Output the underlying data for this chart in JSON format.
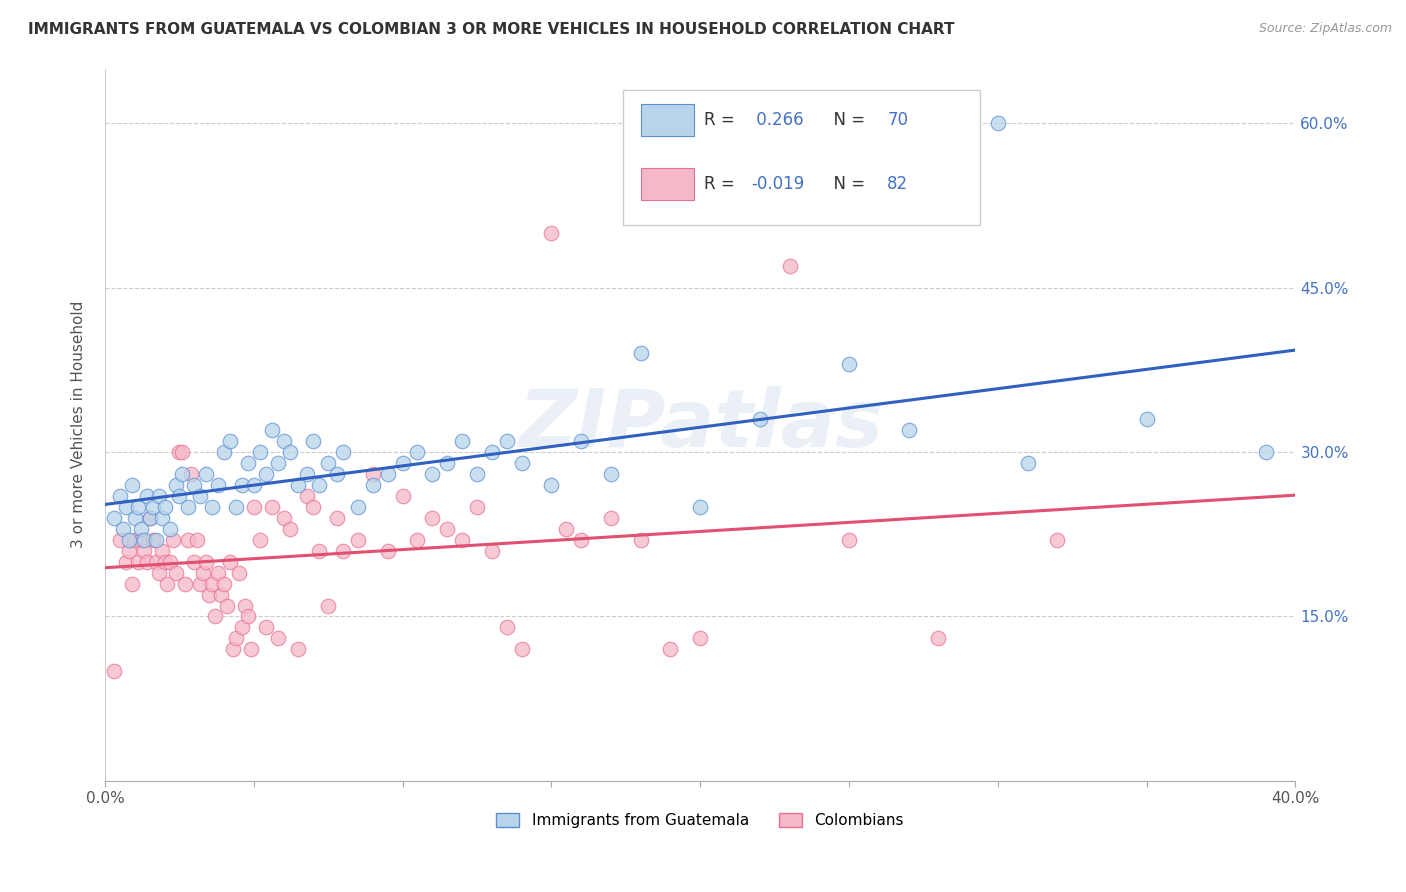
{
  "title": "IMMIGRANTS FROM GUATEMALA VS COLOMBIAN 3 OR MORE VEHICLES IN HOUSEHOLD CORRELATION CHART",
  "source": "Source: ZipAtlas.com",
  "ylabel": "3 or more Vehicles in Household",
  "xmin": 0.0,
  "xmax": 0.4,
  "ymin": 0.0,
  "ymax": 0.65,
  "xticks": [
    0.0,
    0.05,
    0.1,
    0.15,
    0.2,
    0.25,
    0.3,
    0.35,
    0.4
  ],
  "xtick_labels": [
    "0.0%",
    "",
    "",
    "",
    "",
    "",
    "",
    "",
    "40.0%"
  ],
  "ytick_labels": [
    "15.0%",
    "30.0%",
    "45.0%",
    "60.0%"
  ],
  "yticks": [
    0.15,
    0.3,
    0.45,
    0.6
  ],
  "R_blue": 0.266,
  "N_blue": 70,
  "R_pink": -0.019,
  "N_pink": 82,
  "blue_fill": "#b8d4ea",
  "pink_fill": "#f5b8c8",
  "blue_edge": "#5b8fd4",
  "pink_edge": "#e87090",
  "blue_line": "#3060c0",
  "pink_line": "#e05070",
  "legend_label_blue": "Immigrants from Guatemala",
  "legend_label_pink": "Colombians",
  "watermark": "ZIPatlas",
  "blue_scatter": [
    [
      0.003,
      0.24
    ],
    [
      0.005,
      0.26
    ],
    [
      0.006,
      0.23
    ],
    [
      0.007,
      0.25
    ],
    [
      0.008,
      0.22
    ],
    [
      0.009,
      0.27
    ],
    [
      0.01,
      0.24
    ],
    [
      0.011,
      0.25
    ],
    [
      0.012,
      0.23
    ],
    [
      0.013,
      0.22
    ],
    [
      0.014,
      0.26
    ],
    [
      0.015,
      0.24
    ],
    [
      0.016,
      0.25
    ],
    [
      0.017,
      0.22
    ],
    [
      0.018,
      0.26
    ],
    [
      0.019,
      0.24
    ],
    [
      0.02,
      0.25
    ],
    [
      0.022,
      0.23
    ],
    [
      0.024,
      0.27
    ],
    [
      0.025,
      0.26
    ],
    [
      0.026,
      0.28
    ],
    [
      0.028,
      0.25
    ],
    [
      0.03,
      0.27
    ],
    [
      0.032,
      0.26
    ],
    [
      0.034,
      0.28
    ],
    [
      0.036,
      0.25
    ],
    [
      0.038,
      0.27
    ],
    [
      0.04,
      0.3
    ],
    [
      0.042,
      0.31
    ],
    [
      0.044,
      0.25
    ],
    [
      0.046,
      0.27
    ],
    [
      0.048,
      0.29
    ],
    [
      0.05,
      0.27
    ],
    [
      0.052,
      0.3
    ],
    [
      0.054,
      0.28
    ],
    [
      0.056,
      0.32
    ],
    [
      0.058,
      0.29
    ],
    [
      0.06,
      0.31
    ],
    [
      0.062,
      0.3
    ],
    [
      0.065,
      0.27
    ],
    [
      0.068,
      0.28
    ],
    [
      0.07,
      0.31
    ],
    [
      0.072,
      0.27
    ],
    [
      0.075,
      0.29
    ],
    [
      0.078,
      0.28
    ],
    [
      0.08,
      0.3
    ],
    [
      0.085,
      0.25
    ],
    [
      0.09,
      0.27
    ],
    [
      0.095,
      0.28
    ],
    [
      0.1,
      0.29
    ],
    [
      0.105,
      0.3
    ],
    [
      0.11,
      0.28
    ],
    [
      0.115,
      0.29
    ],
    [
      0.12,
      0.31
    ],
    [
      0.125,
      0.28
    ],
    [
      0.13,
      0.3
    ],
    [
      0.135,
      0.31
    ],
    [
      0.14,
      0.29
    ],
    [
      0.15,
      0.27
    ],
    [
      0.16,
      0.31
    ],
    [
      0.17,
      0.28
    ],
    [
      0.18,
      0.39
    ],
    [
      0.2,
      0.25
    ],
    [
      0.22,
      0.33
    ],
    [
      0.25,
      0.38
    ],
    [
      0.27,
      0.32
    ],
    [
      0.3,
      0.6
    ],
    [
      0.31,
      0.29
    ],
    [
      0.35,
      0.33
    ],
    [
      0.39,
      0.3
    ]
  ],
  "pink_scatter": [
    [
      0.003,
      0.1
    ],
    [
      0.005,
      0.22
    ],
    [
      0.007,
      0.2
    ],
    [
      0.008,
      0.21
    ],
    [
      0.009,
      0.18
    ],
    [
      0.01,
      0.22
    ],
    [
      0.011,
      0.2
    ],
    [
      0.012,
      0.22
    ],
    [
      0.013,
      0.21
    ],
    [
      0.014,
      0.2
    ],
    [
      0.015,
      0.24
    ],
    [
      0.016,
      0.22
    ],
    [
      0.017,
      0.2
    ],
    [
      0.018,
      0.19
    ],
    [
      0.019,
      0.21
    ],
    [
      0.02,
      0.2
    ],
    [
      0.021,
      0.18
    ],
    [
      0.022,
      0.2
    ],
    [
      0.023,
      0.22
    ],
    [
      0.024,
      0.19
    ],
    [
      0.025,
      0.3
    ],
    [
      0.026,
      0.3
    ],
    [
      0.027,
      0.18
    ],
    [
      0.028,
      0.22
    ],
    [
      0.029,
      0.28
    ],
    [
      0.03,
      0.2
    ],
    [
      0.031,
      0.22
    ],
    [
      0.032,
      0.18
    ],
    [
      0.033,
      0.19
    ],
    [
      0.034,
      0.2
    ],
    [
      0.035,
      0.17
    ],
    [
      0.036,
      0.18
    ],
    [
      0.037,
      0.15
    ],
    [
      0.038,
      0.19
    ],
    [
      0.039,
      0.17
    ],
    [
      0.04,
      0.18
    ],
    [
      0.041,
      0.16
    ],
    [
      0.042,
      0.2
    ],
    [
      0.043,
      0.12
    ],
    [
      0.044,
      0.13
    ],
    [
      0.045,
      0.19
    ],
    [
      0.046,
      0.14
    ],
    [
      0.047,
      0.16
    ],
    [
      0.048,
      0.15
    ],
    [
      0.049,
      0.12
    ],
    [
      0.05,
      0.25
    ],
    [
      0.052,
      0.22
    ],
    [
      0.054,
      0.14
    ],
    [
      0.056,
      0.25
    ],
    [
      0.058,
      0.13
    ],
    [
      0.06,
      0.24
    ],
    [
      0.062,
      0.23
    ],
    [
      0.065,
      0.12
    ],
    [
      0.068,
      0.26
    ],
    [
      0.07,
      0.25
    ],
    [
      0.072,
      0.21
    ],
    [
      0.075,
      0.16
    ],
    [
      0.078,
      0.24
    ],
    [
      0.08,
      0.21
    ],
    [
      0.085,
      0.22
    ],
    [
      0.09,
      0.28
    ],
    [
      0.095,
      0.21
    ],
    [
      0.1,
      0.26
    ],
    [
      0.105,
      0.22
    ],
    [
      0.11,
      0.24
    ],
    [
      0.115,
      0.23
    ],
    [
      0.12,
      0.22
    ],
    [
      0.125,
      0.25
    ],
    [
      0.13,
      0.21
    ],
    [
      0.135,
      0.14
    ],
    [
      0.14,
      0.12
    ],
    [
      0.15,
      0.5
    ],
    [
      0.155,
      0.23
    ],
    [
      0.16,
      0.22
    ],
    [
      0.17,
      0.24
    ],
    [
      0.18,
      0.22
    ],
    [
      0.19,
      0.12
    ],
    [
      0.2,
      0.13
    ],
    [
      0.23,
      0.47
    ],
    [
      0.25,
      0.22
    ],
    [
      0.28,
      0.13
    ],
    [
      0.32,
      0.22
    ]
  ]
}
